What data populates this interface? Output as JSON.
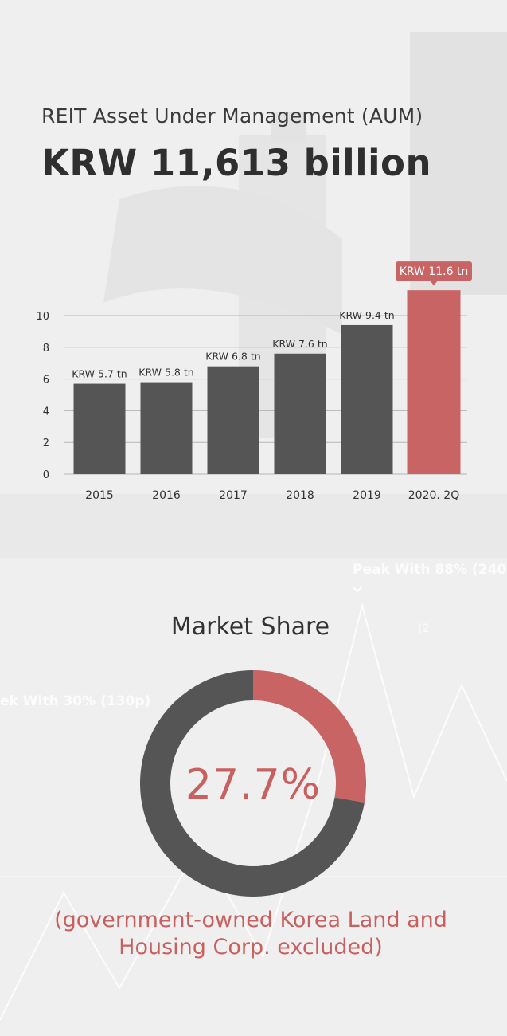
{
  "header": {
    "subtitle": "REIT Asset Under Management (AUM)",
    "headline": "KRW 11,613 billion"
  },
  "chart_data": [
    {
      "type": "bar",
      "categories": [
        "2015",
        "2016",
        "2017",
        "2018",
        "2019",
        "2020. 2Q"
      ],
      "values": [
        5.7,
        5.8,
        6.8,
        7.6,
        9.4,
        11.6
      ],
      "data_labels": [
        "KRW 5.7 tn",
        "KRW 5.8 tn",
        "KRW 6.8 tn",
        "KRW 7.6 tn",
        "KRW 9.4 tn",
        "KRW 11.6 tn"
      ],
      "highlight_index": 5,
      "yticks": [
        0,
        2,
        4,
        6,
        8,
        10
      ],
      "ylim": [
        0,
        11
      ],
      "grid": true,
      "colors": {
        "bar": "#555556",
        "highlight": "#c96464",
        "grid": "#b5b5b5",
        "label": "#333333"
      }
    },
    {
      "type": "pie",
      "title": "Market Share",
      "values": [
        27.7,
        72.3
      ],
      "center_label": "27.7%",
      "colors": [
        "#c96464",
        "#555556"
      ],
      "note": "(government-owned Korea Land and Housing Corp.  excluded)"
    }
  ],
  "background": {
    "texts": [
      "Peak With 88% (240",
      "ek With 30% (130p)",
      "(2"
    ]
  }
}
